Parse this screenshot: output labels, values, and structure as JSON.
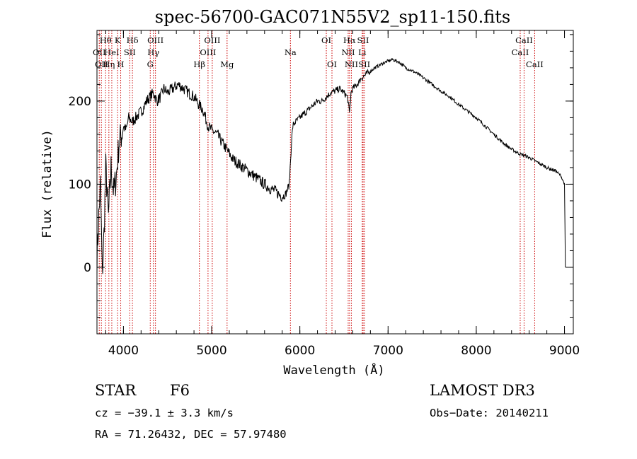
{
  "chart_data": {
    "type": "line",
    "title": "spec-56700-GAC071N55V2_sp11-150.fits",
    "xlabel": "Wavelength (Å)",
    "ylabel": "Flux (relative)",
    "xlim": [
      3700,
      9100
    ],
    "ylim": [
      -80,
      285
    ],
    "x_ticks": [
      4000,
      5000,
      6000,
      7000,
      8000,
      9000
    ],
    "x_tick_labels": [
      "4000",
      "5000",
      "6000",
      "7000",
      "8000",
      "9000"
    ],
    "y_ticks": [
      0,
      100,
      200
    ],
    "y_tick_labels": [
      "0",
      "100",
      "200"
    ],
    "x_minor_step": 200,
    "y_minor_step": 20,
    "grid": false,
    "line_color": "#000000",
    "marker_color": "#cc0000",
    "series": [
      {
        "name": "flux",
        "x": [
          3700,
          3720,
          3740,
          3760,
          3780,
          3800,
          3830,
          3860,
          3890,
          3920,
          3950,
          3980,
          4000,
          4030,
          4060,
          4100,
          4140,
          4180,
          4220,
          4260,
          4300,
          4340,
          4380,
          4420,
          4460,
          4500,
          4560,
          4620,
          4680,
          4740,
          4800,
          4860,
          4900,
          4960,
          5000,
          5060,
          5120,
          5180,
          5240,
          5300,
          5360,
          5420,
          5480,
          5540,
          5600,
          5660,
          5720,
          5760,
          5800,
          5840,
          5880,
          5905,
          5920,
          5950,
          6000,
          6050,
          6100,
          6150,
          6200,
          6250,
          6300,
          6350,
          6400,
          6450,
          6500,
          6540,
          6563,
          6580,
          6600,
          6650,
          6700,
          6750,
          6800,
          6850,
          6900,
          6950,
          7000,
          7050,
          7100,
          7150,
          7200,
          7300,
          7400,
          7500,
          7600,
          7700,
          7800,
          7900,
          8000,
          8100,
          8200,
          8300,
          8400,
          8500,
          8560,
          8600,
          8700,
          8800,
          8900,
          8960,
          9000,
          9010
        ],
        "y": [
          10,
          60,
          100,
          -10,
          40,
          120,
          60,
          120,
          90,
          110,
          150,
          160,
          170,
          165,
          180,
          175,
          180,
          185,
          190,
          200,
          205,
          210,
          200,
          205,
          215,
          210,
          215,
          220,
          215,
          210,
          205,
          195,
          190,
          170,
          165,
          160,
          150,
          140,
          130,
          125,
          120,
          115,
          110,
          105,
          100,
          95,
          92,
          88,
          85,
          88,
          100,
          150,
          170,
          175,
          180,
          185,
          190,
          195,
          200,
          200,
          205,
          210,
          212,
          215,
          210,
          205,
          185,
          210,
          215,
          220,
          228,
          232,
          236,
          240,
          243,
          246,
          248,
          250,
          248,
          245,
          240,
          235,
          228,
          220,
          212,
          205,
          196,
          188,
          180,
          170,
          160,
          150,
          142,
          136,
          134,
          132,
          126,
          120,
          116,
          110,
          100,
          0
        ]
      }
    ],
    "line_markers": [
      {
        "wavelength": 3726,
        "label": "OII",
        "row": 2
      },
      {
        "wavelength": 3750,
        "label": "OII",
        "row": 3
      },
      {
        "wavelength": 3798,
        "label": "Hθ",
        "row": 1
      },
      {
        "wavelength": 3835,
        "label": "Hη",
        "row": 3
      },
      {
        "wavelength": 3868,
        "label": "HeI",
        "row": 2
      },
      {
        "wavelength": 3934,
        "label": "K",
        "row": 1
      },
      {
        "wavelength": 3969,
        "label": "H",
        "row": 3
      },
      {
        "wavelength": 4072,
        "label": "SII",
        "row": 2
      },
      {
        "wavelength": 4102,
        "label": "Hδ",
        "row": 1
      },
      {
        "wavelength": 4304,
        "label": "G",
        "row": 3
      },
      {
        "wavelength": 4340,
        "label": "Hγ",
        "row": 2
      },
      {
        "wavelength": 4363,
        "label": "OIII",
        "row": 1
      },
      {
        "wavelength": 4861,
        "label": "Hβ",
        "row": 3
      },
      {
        "wavelength": 4959,
        "label": "OIII",
        "row": 2
      },
      {
        "wavelength": 5007,
        "label": "OIII",
        "row": 1
      },
      {
        "wavelength": 5175,
        "label": "Mg",
        "row": 3
      },
      {
        "wavelength": 5893,
        "label": "Na",
        "row": 2
      },
      {
        "wavelength": 6300,
        "label": "OI",
        "row": 1
      },
      {
        "wavelength": 6364,
        "label": "OI",
        "row": 3
      },
      {
        "wavelength": 6548,
        "label": "NII",
        "row": 2
      },
      {
        "wavelength": 6563,
        "label": "Hα",
        "row": 1
      },
      {
        "wavelength": 6584,
        "label": "NII",
        "row": 3
      },
      {
        "wavelength": 6707,
        "label": "Li",
        "row": 2
      },
      {
        "wavelength": 6717,
        "label": "SII",
        "row": 1
      },
      {
        "wavelength": 6731,
        "label": "SII",
        "row": 3
      },
      {
        "wavelength": 8498,
        "label": "CaII",
        "row": 2
      },
      {
        "wavelength": 8542,
        "label": "CaII",
        "row": 1
      },
      {
        "wavelength": 8662,
        "label": "CaII",
        "row": 3
      }
    ]
  },
  "info": {
    "object_class": "STAR",
    "subclass": "F6",
    "survey": "LAMOST DR3",
    "cz": "cz = −39.1 ± 3.3 km/s",
    "obs_date": "Obs−Date: 20140211",
    "coords": "RA =  71.26432, DEC =  57.97480"
  }
}
